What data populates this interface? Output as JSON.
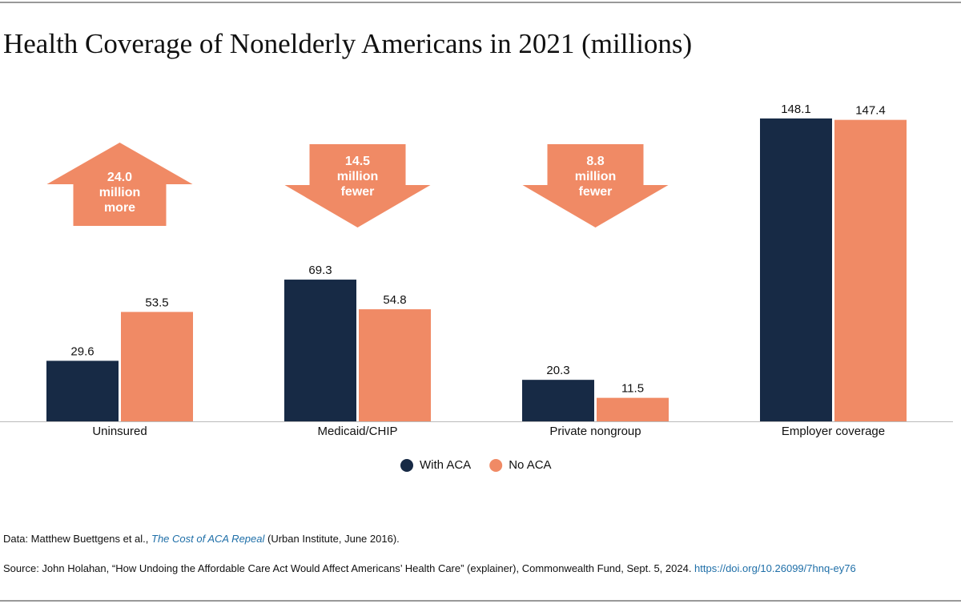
{
  "chart_data": {
    "type": "bar",
    "title": "Health Coverage of Nonelderly Americans in 2021 (millions)",
    "categories": [
      "Uninsured",
      "Medicaid/CHIP",
      "Private nongroup",
      "Employer coverage"
    ],
    "series": [
      {
        "name": "With ACA",
        "color": "#172a45",
        "values": [
          29.6,
          69.3,
          20.3,
          148.1
        ]
      },
      {
        "name": "No ACA",
        "color": "#f08a65",
        "values": [
          53.5,
          54.8,
          11.5,
          147.4
        ]
      }
    ],
    "ylim": [
      0,
      150
    ],
    "annotations": [
      {
        "category": 0,
        "direction": "up",
        "lines": [
          "24.0",
          "million",
          "more"
        ]
      },
      {
        "category": 1,
        "direction": "down",
        "lines": [
          "14.5",
          "million",
          "fewer"
        ]
      },
      {
        "category": 2,
        "direction": "down",
        "lines": [
          "8.8",
          "million",
          "fewer"
        ]
      }
    ],
    "notes": {
      "data": [
        "Data: Matthew Buettgens et al., ",
        "The Cost of ACA Repeal",
        " (Urban Institute, June 2016)."
      ],
      "source": [
        "Source: John Holahan, “How Undoing the Affordable Care Act Would Affect Americans’ Health Care” (explainer), Commonwealth Fund, Sept. 5, 2024. ",
        "https://doi.org/10.26099/7hnq-ey76"
      ]
    }
  }
}
